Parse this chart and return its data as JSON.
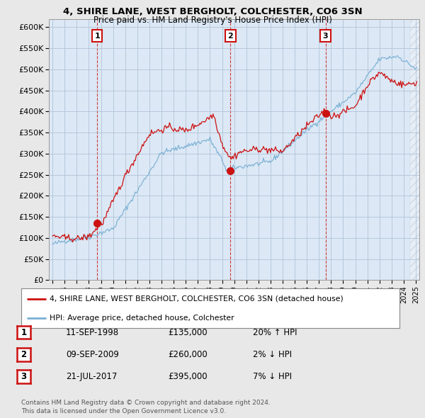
{
  "title_line1": "4, SHIRE LANE, WEST BERGHOLT, COLCHESTER, CO6 3SN",
  "title_line2": "Price paid vs. HM Land Registry's House Price Index (HPI)",
  "ylabel_ticks": [
    "£0",
    "£50K",
    "£100K",
    "£150K",
    "£200K",
    "£250K",
    "£300K",
    "£350K",
    "£400K",
    "£450K",
    "£500K",
    "£550K",
    "£600K"
  ],
  "ytick_values": [
    0,
    50000,
    100000,
    150000,
    200000,
    250000,
    300000,
    350000,
    400000,
    450000,
    500000,
    550000,
    600000
  ],
  "ylim": [
    0,
    620000
  ],
  "xlim_start": 1994.7,
  "xlim_end": 2025.3,
  "bg_color": "#e8e8e8",
  "plot_bg_color": "#dce8f5",
  "grid_color": "#b0c4d8",
  "red_line_color": "#cc1111",
  "blue_line_color": "#7ab0d4",
  "transaction_markers": [
    {
      "date_num": 1998.69,
      "price": 135000,
      "label": "1"
    },
    {
      "date_num": 2009.69,
      "price": 260000,
      "label": "2"
    },
    {
      "date_num": 2017.54,
      "price": 395000,
      "label": "3"
    }
  ],
  "legend_entries": [
    "4, SHIRE LANE, WEST BERGHOLT, COLCHESTER, CO6 3SN (detached house)",
    "HPI: Average price, detached house, Colchester"
  ],
  "table_rows": [
    {
      "num": "1",
      "date": "11-SEP-1998",
      "price": "£135,000",
      "pct": "20% ↑ HPI"
    },
    {
      "num": "2",
      "date": "09-SEP-2009",
      "price": "£260,000",
      "pct": "2% ↓ HPI"
    },
    {
      "num": "3",
      "date": "21-JUL-2017",
      "price": "£395,000",
      "pct": "7% ↓ HPI"
    }
  ],
  "footnote": "Contains HM Land Registry data © Crown copyright and database right 2024.\nThis data is licensed under the Open Government Licence v3.0."
}
